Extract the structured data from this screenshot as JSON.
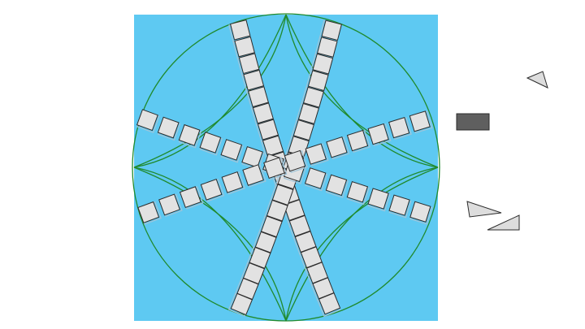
{
  "canvas": {
    "background_color": "#ffffff",
    "board_color": "#5ec9f2",
    "circle_color": "#1f8a2c",
    "tile_color": "#e2e2e2",
    "tile_outline_color": "#2b2b2b",
    "tile_shadow_color": "#9fc4d8"
  },
  "board": {
    "description_icon": "quilt-board",
    "strips": [
      {
        "name": "strip-upper-left-to-lower-right",
        "tiles": 16
      },
      {
        "name": "strip-upper-right-to-lower-left",
        "tiles": 16
      },
      {
        "name": "strip-left-arc",
        "tiles": 12
      },
      {
        "name": "strip-right-arc",
        "tiles": 12
      }
    ]
  },
  "palette": {
    "pieces": [
      {
        "name": "small-triangle-piece",
        "color": "#dddddd"
      },
      {
        "name": "dark-rectangle-piece",
        "color": "#5f5f5f"
      },
      {
        "name": "long-triangle-piece-a",
        "color": "#dddddd"
      },
      {
        "name": "long-triangle-piece-b",
        "color": "#dddddd"
      }
    ]
  }
}
